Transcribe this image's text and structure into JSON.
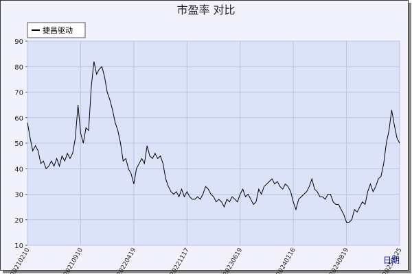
{
  "chart_data": {
    "type": "line",
    "title": "市盈率  对比",
    "x_label": "日期",
    "categories": [
      "20210210",
      null,
      null,
      null,
      null,
      null,
      null,
      null,
      null,
      null,
      null,
      null,
      null,
      null,
      null,
      null,
      null,
      null,
      null,
      null,
      "20210910",
      null,
      null,
      null,
      null,
      null,
      null,
      null,
      null,
      null,
      null,
      null,
      null,
      null,
      null,
      null,
      null,
      null,
      null,
      null,
      "20220419",
      null,
      null,
      null,
      null,
      null,
      null,
      null,
      null,
      null,
      null,
      null,
      null,
      null,
      null,
      null,
      null,
      null,
      null,
      null,
      "20221117",
      null,
      null,
      null,
      null,
      null,
      null,
      null,
      null,
      null,
      null,
      null,
      null,
      null,
      null,
      null,
      null,
      null,
      null,
      null,
      "20230619",
      null,
      null,
      null,
      null,
      null,
      null,
      null,
      null,
      null,
      null,
      null,
      null,
      null,
      null,
      null,
      null,
      null,
      null,
      null,
      "20240116",
      null,
      null,
      null,
      null,
      null,
      null,
      null,
      null,
      null,
      null,
      null,
      null,
      null,
      null,
      null,
      null,
      null,
      null,
      null,
      "20240819",
      null,
      null,
      null,
      null,
      null,
      null,
      null,
      null,
      null,
      null,
      null,
      null,
      null,
      null,
      null,
      null,
      null,
      null,
      null,
      "20250325"
    ],
    "series": [
      {
        "name": "捷昌驱动",
        "color": "#000000",
        "values": [
          58,
          52,
          47,
          49,
          47,
          42,
          43,
          40,
          41,
          43,
          41,
          44,
          41,
          45,
          43,
          46,
          44,
          46,
          52,
          65,
          54,
          50,
          56,
          55,
          72,
          82,
          77,
          79,
          80,
          76,
          70,
          67,
          63,
          58,
          55,
          50,
          43,
          44,
          40,
          38,
          34,
          40,
          42,
          44,
          42,
          49,
          45,
          44,
          46,
          44,
          45,
          42,
          36,
          33,
          31,
          30,
          31,
          29,
          32,
          29,
          31,
          29,
          28,
          28,
          29,
          28,
          30,
          33,
          32,
          30,
          29,
          27,
          28,
          27,
          25,
          28,
          27,
          29,
          28,
          27,
          30,
          32,
          29,
          30,
          28,
          26,
          27,
          32,
          30,
          33,
          34,
          35,
          36,
          34,
          35,
          33,
          32,
          34,
          33,
          31,
          27,
          24,
          28,
          29,
          30,
          31,
          33,
          36,
          32,
          31,
          29,
          29,
          28,
          30,
          30,
          27,
          26,
          26,
          24,
          22,
          19,
          19,
          20,
          24,
          23,
          25,
          27,
          26,
          31,
          34,
          31,
          33,
          36,
          37,
          42,
          50,
          55,
          63,
          57,
          52,
          50
        ]
      }
    ],
    "ylim": [
      10,
      90
    ],
    "yticks": [
      10,
      20,
      30,
      40,
      50,
      60,
      70,
      80,
      90
    ],
    "grid": true
  }
}
